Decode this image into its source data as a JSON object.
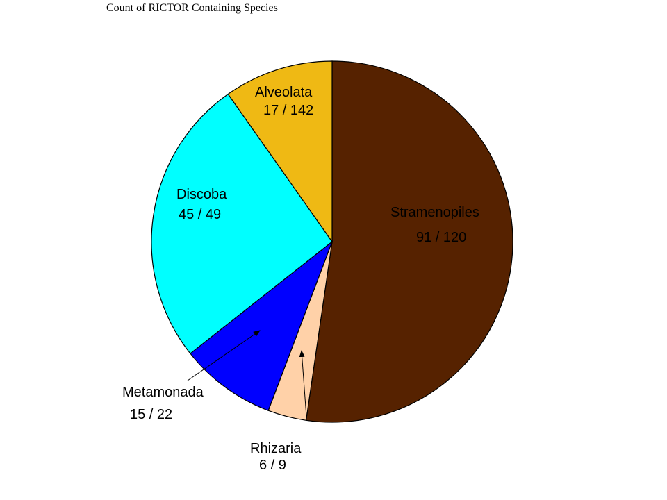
{
  "chart_data": {
    "type": "pie",
    "title": "Count of RICTOR Containing Species",
    "slices": [
      {
        "name": "Stramenopiles",
        "count_label": "91 / 120",
        "value": 91,
        "color": "#562200"
      },
      {
        "name": "Rhizaria",
        "count_label": "6 / 9",
        "value": 6,
        "color": "#ffd1a8"
      },
      {
        "name": "Metamonada",
        "count_label": "15 / 22",
        "value": 15,
        "color": "#0000ff"
      },
      {
        "name": "Discoba",
        "count_label": "45 / 49",
        "value": 45,
        "color": "#00ffff"
      },
      {
        "name": "Alveolata",
        "count_label": "17 / 142",
        "value": 17,
        "color": "#efb914"
      }
    ]
  }
}
